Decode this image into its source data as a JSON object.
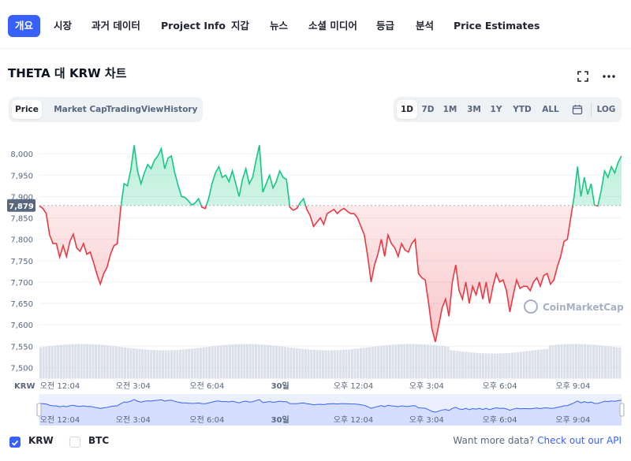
{
  "nav": {
    "items": [
      "개요",
      "시장",
      "과거 데이터",
      "Project Info",
      "지갑",
      "뉴스",
      "소셜 미디어",
      "등급",
      "분석",
      "Price Estimates"
    ],
    "active_index": 0
  },
  "chart_header": {
    "title": "THETA 대 KRW 차트",
    "fullscreen_icon": "fullscreen-icon",
    "more_icon": "more-icon"
  },
  "view_tabs": {
    "items": [
      "Price",
      "Market Cap",
      "TradingView",
      "History"
    ],
    "active_index": 0
  },
  "range_tabs": {
    "items": [
      "1D",
      "7D",
      "1M",
      "3M",
      "1Y",
      "YTD",
      "ALL"
    ],
    "active_index": 0,
    "calendar_icon": "calendar-icon",
    "log_label": "LOG"
  },
  "chart_data": {
    "type": "line",
    "y_ticks": [
      "8,000",
      "7,950",
      "7,900",
      "7,850",
      "7,800",
      "7,750",
      "7,700",
      "7,650",
      "7,600",
      "7,550",
      "7,500"
    ],
    "ylim": [
      7475,
      8050
    ],
    "reference_value": 7879,
    "reference_label": "7,879",
    "currency_label": "KRW",
    "x_ticks": [
      "오전 12:04",
      "오전 3:04",
      "오전 6:04",
      "30일",
      "오후 12:04",
      "오후 3:04",
      "오후 6:04",
      "오후 9:04"
    ],
    "x_tick_pos": [
      0.06,
      0.176,
      0.293,
      0.409,
      0.525,
      0.641,
      0.757,
      0.873
    ],
    "watermark": "CoinMarketCap",
    "colors": {
      "up": "#16c784",
      "down": "#ea3943",
      "volume": "#cfd6e4",
      "nav": "#3861fb"
    },
    "series": [
      {
        "y": [
          7878,
          7872,
          7860,
          7810,
          7790,
          7790,
          7758,
          7785,
          7760,
          7795,
          7812,
          7780,
          7772,
          7790,
          7765,
          7770,
          7745,
          7718,
          7695,
          7720,
          7735,
          7765,
          7785,
          7790,
          7872,
          7930,
          7925,
          7962,
          8020,
          7960,
          7930,
          7955,
          7975,
          7965,
          7985,
          7995,
          8012,
          7965,
          7990,
          7995,
          7955,
          7925,
          7900,
          7898,
          7890,
          7880,
          7885,
          7895,
          7875,
          7872,
          7895,
          7930,
          7955,
          7970,
          7945,
          7950,
          7935,
          7960,
          7930,
          7900,
          7940,
          7965,
          7930,
          7945,
          7985,
          8020,
          7910,
          7930,
          7950,
          7920,
          7935,
          7960,
          7945,
          7940,
          7875,
          7868,
          7872,
          7885,
          7895,
          7870,
          7855,
          7830,
          7840,
          7850,
          7835,
          7860,
          7865,
          7870,
          7860,
          7868,
          7872,
          7865,
          7860,
          7860,
          7850,
          7830,
          7810,
          7760,
          7700,
          7740,
          7765,
          7800,
          7760,
          7810,
          7790,
          7780,
          7760,
          7790,
          7775,
          7770,
          7790,
          7800,
          7720,
          7710,
          7705,
          7650,
          7590,
          7560,
          7600,
          7640,
          7660,
          7620,
          7700,
          7740,
          7680,
          7660,
          7700,
          7650,
          7690,
          7670,
          7700,
          7660,
          7700,
          7650,
          7690,
          7720,
          7700,
          7705,
          7680,
          7630,
          7670,
          7705,
          7685,
          7690,
          7690,
          7680,
          7700,
          7710,
          7690,
          7715,
          7720,
          7695,
          7705,
          7735,
          7760,
          7795,
          7800,
          7850,
          7900,
          7970,
          7900,
          7945,
          7905,
          7930,
          7880,
          7878,
          7915,
          7960,
          7945,
          7970,
          7955,
          7980,
          7995
        ]
      }
    ]
  },
  "footer": {
    "legend": [
      "KRW",
      "BTC"
    ],
    "checked": [
      true,
      false
    ],
    "api_text": "Want more data?",
    "api_link": "Check out our API"
  }
}
